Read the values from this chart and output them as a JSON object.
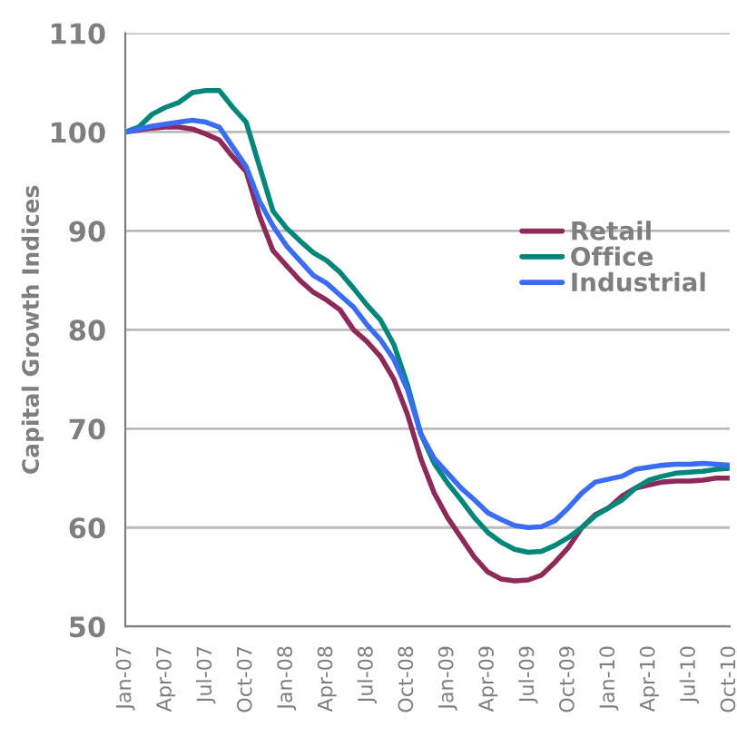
{
  "chart_data": {
    "type": "line",
    "ylabel": "Capital Growth Indices",
    "categories": [
      "Jan-07",
      null,
      null,
      "Apr-07",
      null,
      null,
      "Jul-07",
      null,
      null,
      "Oct-07",
      null,
      null,
      "Jan-08",
      null,
      null,
      "Apr-08",
      null,
      null,
      "Jul-08",
      null,
      null,
      "Oct-08",
      null,
      null,
      "Jan-09",
      null,
      null,
      "Apr-09",
      null,
      null,
      "Jul-09",
      null,
      null,
      "Oct-09",
      null,
      null,
      "Jan-10",
      null,
      null,
      "Apr-10",
      null,
      null,
      "Jul-10",
      null,
      null,
      "Oct-10"
    ],
    "series": [
      {
        "name": "Retail",
        "color": "#8e2a5a",
        "values": [
          100,
          100.2,
          100.4,
          100.5,
          100.5,
          100.3,
          99.8,
          99.2,
          97.5,
          96,
          91.5,
          88,
          86.5,
          85,
          83.8,
          83,
          82,
          80,
          78.8,
          77.3,
          75,
          71.5,
          67,
          63.5,
          61,
          59,
          57,
          55.5,
          54.8,
          54.6,
          54.7,
          55.2,
          56.5,
          58,
          60,
          61.3,
          62,
          63.2,
          64,
          64.3,
          64.6,
          64.7,
          64.7,
          64.8,
          65,
          65
        ]
      },
      {
        "name": "Office",
        "color": "#00877a",
        "values": [
          100,
          100.5,
          101.8,
          102.5,
          103,
          104,
          104.2,
          104.2,
          102.5,
          101,
          96.5,
          92,
          90.3,
          89,
          87.8,
          87,
          85.8,
          84.2,
          82.5,
          81,
          78.5,
          74.5,
          69.5,
          66.5,
          64.5,
          62.8,
          61,
          59.5,
          58.5,
          57.8,
          57.5,
          57.6,
          58.2,
          59,
          60,
          61.2,
          62,
          62.8,
          64,
          64.8,
          65.2,
          65.5,
          65.6,
          65.7,
          65.9,
          66
        ]
      },
      {
        "name": "Industrial",
        "color": "#3a6cf4",
        "values": [
          100,
          100.3,
          100.6,
          100.8,
          101,
          101.2,
          101,
          100.5,
          98.5,
          96.5,
          93,
          90.5,
          88.5,
          87,
          85.5,
          84.7,
          83.5,
          82.3,
          80.5,
          79,
          77,
          74,
          69.5,
          67,
          65.5,
          64,
          62.8,
          61.5,
          60.8,
          60.2,
          60,
          60.1,
          60.7,
          62,
          63.5,
          64.6,
          64.9,
          65.2,
          65.9,
          66.1,
          66.3,
          66.4,
          66.4,
          66.5,
          66.4,
          66.3
        ]
      }
    ],
    "ylim": [
      50,
      110
    ],
    "yticks": [
      50,
      60,
      70,
      80,
      90,
      100,
      110
    ],
    "grid": "y",
    "legend": "center right",
    "marker": "none",
    "line_style": "solid"
  }
}
